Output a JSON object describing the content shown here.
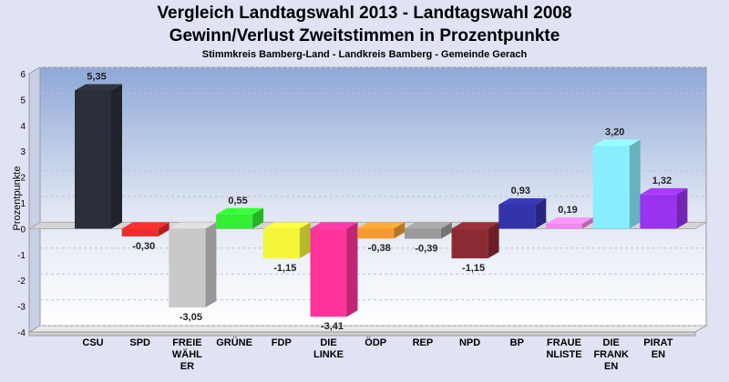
{
  "header": {
    "title_line1": "Vergleich Landtagswahl 2013 - Landtagswahl 2008",
    "title_line2": "Gewinn/Verlust Zweitstimmen in Prozentpunkte",
    "subtitle": "Stimmkreis Bamberg-Land - Landkreis Bamberg - Gemeinde Gerach"
  },
  "chart_data": {
    "type": "bar",
    "title": "Vergleich Landtagswahl 2013 - Landtagswahl 2008",
    "subtitle": "Gewinn/Verlust Zweitstimmen in Prozentpunkte",
    "ylabel": "Prozentpunkte",
    "xlabel": "",
    "ylim": [
      -4,
      6
    ],
    "yticks": [
      6,
      5,
      4,
      3,
      2,
      1,
      0,
      -1,
      -2,
      -3,
      -4
    ],
    "grid": true,
    "categories": [
      {
        "lines": [
          "CSU"
        ],
        "value": 5.35,
        "label": "5,35",
        "color": "#2b2f3a"
      },
      {
        "lines": [
          "SPD"
        ],
        "value": -0.3,
        "label": "-0,30",
        "color": "#ee2a2a"
      },
      {
        "lines": [
          "FREIE",
          "WÄHL",
          "ER"
        ],
        "value": -3.05,
        "label": "-3,05",
        "color": "#c9c9c9"
      },
      {
        "lines": [
          "GRÜNE"
        ],
        "value": 0.55,
        "label": "0,55",
        "color": "#33ee33"
      },
      {
        "lines": [
          "FDP"
        ],
        "value": -1.15,
        "label": "-1,15",
        "color": "#f5f53a"
      },
      {
        "lines": [
          "DIE",
          "LINKE"
        ],
        "value": -3.41,
        "label": "-3,41",
        "color": "#ff3399"
      },
      {
        "lines": [
          "ÖDP"
        ],
        "value": -0.38,
        "label": "-0,38",
        "color": "#f59a33"
      },
      {
        "lines": [
          "REP"
        ],
        "value": -0.39,
        "label": "-0,39",
        "color": "#9a9a9a"
      },
      {
        "lines": [
          "NPD"
        ],
        "value": -1.15,
        "label": "-1,15",
        "color": "#8b2a33"
      },
      {
        "lines": [
          "BP"
        ],
        "value": 0.93,
        "label": "0,93",
        "color": "#3333aa"
      },
      {
        "lines": [
          "FRAUE",
          "NLISTE"
        ],
        "value": 0.19,
        "label": "0,19",
        "color": "#ee88ee"
      },
      {
        "lines": [
          "DIE",
          "FRANK",
          "EN"
        ],
        "value": 3.2,
        "label": "3,20",
        "color": "#88eeff"
      },
      {
        "lines": [
          "PIRAT",
          "EN"
        ],
        "value": 1.32,
        "label": "1,32",
        "color": "#9933ee"
      }
    ]
  }
}
